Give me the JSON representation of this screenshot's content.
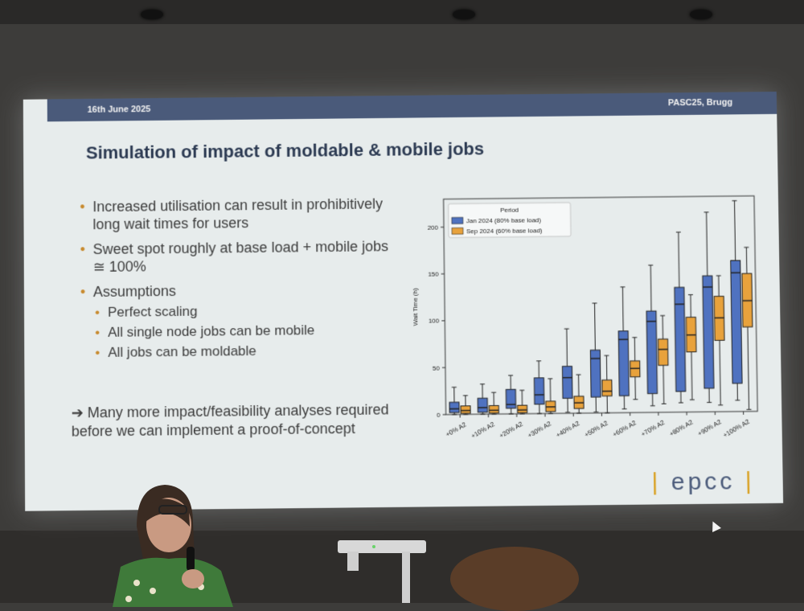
{
  "header": {
    "date": "16th June 2025",
    "venue": "PASC25, Brugg"
  },
  "title": "Simulation of impact of moldable & mobile jobs",
  "bullets": [
    "Increased utilisation can result in prohibitively long wait times for users",
    "Sweet spot roughly at base load + mobile jobs ≅ 100%",
    "Assumptions"
  ],
  "sub_bullets": [
    "Perfect scaling",
    "All single node jobs can be mobile",
    "All jobs can be moldable"
  ],
  "bullet_glyph": "•",
  "conclusion": "➔ Many more impact/feasibility analyses required before we can implement a proof-of-concept",
  "logo": {
    "left_bar": "|",
    "text": "epcc",
    "right_bar": "|"
  },
  "colors": {
    "header": "#4a5a7a",
    "blue": "#4f72c0",
    "orange": "#e8a23c",
    "accent": "#d9a020"
  },
  "chart_data": {
    "type": "box",
    "title": "",
    "xlabel": "",
    "ylabel": "Wait Time (h)",
    "ylim": [
      0,
      230
    ],
    "yticks": [
      0,
      50,
      100,
      150,
      200
    ],
    "categories": [
      "+0% A2",
      "+10% A2",
      "+20% A2",
      "+30% A2",
      "+40% A2",
      "+50% A2",
      "+60% A2",
      "+70% A2",
      "+80% A2",
      "+90% A2",
      "+100% A2"
    ],
    "legend": {
      "title": "Period",
      "position": "top-left"
    },
    "series": [
      {
        "name": "Jan 2024 (80% base load)",
        "color": "#4f72c0",
        "boxes": [
          {
            "min": 0,
            "q1": 2,
            "median": 6,
            "q3": 13,
            "max": 29
          },
          {
            "min": 0,
            "q1": 2,
            "median": 7,
            "q3": 17,
            "max": 32
          },
          {
            "min": 0,
            "q1": 6,
            "median": 10,
            "q3": 26,
            "max": 41
          },
          {
            "min": 0,
            "q1": 10,
            "median": 20,
            "q3": 38,
            "max": 56
          },
          {
            "min": 1,
            "q1": 16,
            "median": 38,
            "q3": 50,
            "max": 90
          },
          {
            "min": 1,
            "q1": 17,
            "median": 58,
            "q3": 67,
            "max": 117
          },
          {
            "min": 4,
            "q1": 18,
            "median": 78,
            "q3": 87,
            "max": 134
          },
          {
            "min": 7,
            "q1": 20,
            "median": 97,
            "q3": 108,
            "max": 157
          },
          {
            "min": 10,
            "q1": 22,
            "median": 115,
            "q3": 133,
            "max": 192
          },
          {
            "min": 10,
            "q1": 25,
            "median": 133,
            "q3": 145,
            "max": 213
          },
          {
            "min": 12,
            "q1": 30,
            "median": 148,
            "q3": 161,
            "max": 225
          }
        ]
      },
      {
        "name": "Sep 2024 (60% base load)",
        "color": "#e8a23c",
        "boxes": [
          {
            "min": 0,
            "q1": 1,
            "median": 4,
            "q3": 9,
            "max": 20
          },
          {
            "min": 0,
            "q1": 1,
            "median": 4,
            "q3": 9,
            "max": 23
          },
          {
            "min": 0,
            "q1": 1,
            "median": 4,
            "q3": 9,
            "max": 25
          },
          {
            "min": 0,
            "q1": 2,
            "median": 7,
            "q3": 13,
            "max": 37
          },
          {
            "min": 0,
            "q1": 5,
            "median": 11,
            "q3": 18,
            "max": 41
          },
          {
            "min": 0,
            "q1": 18,
            "median": 23,
            "q3": 35,
            "max": 61
          },
          {
            "min": 14,
            "q1": 38,
            "median": 47,
            "q3": 55,
            "max": 80
          },
          {
            "min": 9,
            "q1": 50,
            "median": 67,
            "q3": 78,
            "max": 103
          },
          {
            "min": 13,
            "q1": 64,
            "median": 82,
            "q3": 101,
            "max": 125
          },
          {
            "min": 7,
            "q1": 76,
            "median": 100,
            "q3": 123,
            "max": 145
          },
          {
            "min": 2,
            "q1": 90,
            "median": 118,
            "q3": 147,
            "max": 175
          }
        ]
      }
    ]
  }
}
